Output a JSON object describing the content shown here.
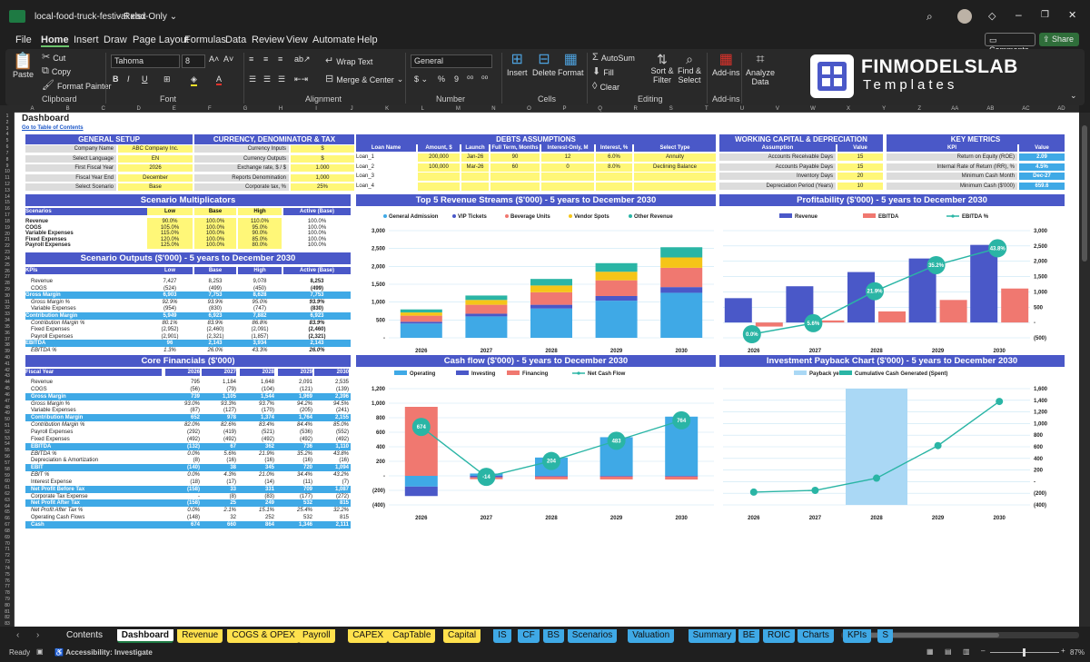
{
  "window": {
    "file": "local-food-truck-festival.xlsx",
    "mode": "Read-Only"
  },
  "menu": [
    "File",
    "Home",
    "Insert",
    "Draw",
    "Page Layout",
    "Formulas",
    "Data",
    "Review",
    "View",
    "Automate",
    "Help"
  ],
  "comments_label": "Comments",
  "share_label": "Share",
  "ribbon": {
    "paste": "Paste",
    "cut": "Cut",
    "copy": "Copy",
    "format_painter": "Format Painter",
    "clipboard": "Clipboard",
    "font_name": "Tahoma",
    "font_size": "8",
    "font": "Font",
    "wrap_text": "Wrap Text",
    "merge_center": "Merge & Center",
    "alignment": "Alignment",
    "number_format": "General",
    "number": "Number",
    "insert": "Insert",
    "delete": "Delete",
    "format": "Format",
    "cells": "Cells",
    "autosum": "AutoSum",
    "fill": "Fill",
    "clear": "Clear",
    "sort_filter": "Sort & Filter",
    "find_select": "Find & Select",
    "editing": "Editing",
    "addins": "Add-ins",
    "addins_grp": "Add-ins",
    "analyze_data": "Analyze Data"
  },
  "logo": {
    "name": "FINMODELSLAB",
    "sub": "Templates"
  },
  "columns": [
    "A",
    "B",
    "C",
    "D",
    "E",
    "F",
    "G",
    "H",
    "I",
    "J",
    "K",
    "L",
    "M",
    "N",
    "O",
    "P",
    "Q",
    "R",
    "S",
    "T",
    "U",
    "V",
    "W",
    "X",
    "Y",
    "Z",
    "AA",
    "AB",
    "AC",
    "AD"
  ],
  "dashboard": {
    "title": "Dashboard",
    "toc_link": "Go to Table of Contents"
  },
  "general_setup": {
    "title": "GENERAL SETUP",
    "rows": [
      [
        "Company Name",
        "ABC Company Inc."
      ],
      [
        "Select Language",
        "EN"
      ],
      [
        "First Fiscal Year",
        "2026"
      ],
      [
        "Fiscal Year End",
        "December"
      ],
      [
        "Select Scenario",
        "Base"
      ]
    ]
  },
  "currency": {
    "title": "CURRENCY, DENOMINATOR & TAX",
    "rows": [
      [
        "Currency Inputs",
        "$"
      ],
      [
        "Currency Outputs",
        "$"
      ],
      [
        "Exchange rate, $ / $",
        "1.000"
      ],
      [
        "Reports Denomination",
        "1,000"
      ],
      [
        "Corporate tax, %",
        "25%"
      ]
    ]
  },
  "debts": {
    "title": "DEBTS ASSUMPTIONS",
    "headers": [
      "Loan Name",
      "Amount, $",
      "Launch",
      "Full Term, Months",
      "Interest-Only, M",
      "Interest, %",
      "Select Type"
    ],
    "rows": [
      [
        "Loan_1",
        "200,000",
        "Jan-26",
        "90",
        "12",
        "6.0%",
        "Annuity"
      ],
      [
        "Loan_2",
        "100,000",
        "Mar-26",
        "60",
        "0",
        "8.0%",
        "Declining Balance"
      ],
      [
        "Loan_3",
        "",
        "",
        "",
        "",
        "",
        ""
      ],
      [
        "Loan_4",
        "",
        "",
        "",
        "",
        "",
        ""
      ]
    ]
  },
  "working_capital": {
    "title": "WORKING CAPITAL & DEPRECIATION",
    "headers": [
      "Assumption",
      "Value"
    ],
    "rows": [
      [
        "Accounts Receivable Days",
        "15"
      ],
      [
        "Accounts Payable Days",
        "15"
      ],
      [
        "Inventory Days",
        "20"
      ],
      [
        "Depreciation Period (Years)",
        "10"
      ]
    ]
  },
  "key_metrics": {
    "title": "KEY METRICS",
    "headers": [
      "KPI",
      "Value"
    ],
    "rows": [
      [
        "Return on Equity (ROE)",
        "2.09"
      ],
      [
        "Internal Rate of Return (IRR), %",
        "4.5%"
      ],
      [
        "Minimum Cash Month",
        "Dec-27"
      ],
      [
        "Minimum Cash ($'000)",
        "659.6"
      ]
    ]
  },
  "scenario_mult": {
    "title": "Scenario Multiplicators",
    "headers": [
      "Scenarios",
      "Low",
      "Base",
      "High",
      "Active (Base)"
    ],
    "rows": [
      [
        "Revenue",
        "90.0%",
        "100.0%",
        "110.0%",
        "100.0%"
      ],
      [
        "COGS",
        "105.0%",
        "100.0%",
        "95.0%",
        "100.0%"
      ],
      [
        "Variable Expenses",
        "115.0%",
        "100.0%",
        "90.0%",
        "100.0%"
      ],
      [
        "Fixed Expenses",
        "120.0%",
        "100.0%",
        "85.0%",
        "100.0%"
      ],
      [
        "Payroll Expenses",
        "125.0%",
        "100.0%",
        "80.0%",
        "100.0%"
      ]
    ]
  },
  "scenario_out": {
    "title": "Scenario Outputs ($'000) - 5 years to December 2030",
    "headers": [
      "KPIs",
      "Low",
      "Base",
      "High",
      "Active (Base)"
    ],
    "rows": [
      [
        "Revenue",
        "7,427",
        "8,253",
        "9,078",
        "8,253",
        "n"
      ],
      [
        "COGS",
        "(524)",
        "(499)",
        "(450)",
        "(499)",
        "n"
      ],
      [
        "Gross Margin",
        "6,903",
        "7,753",
        "8,628",
        "7,753",
        "b"
      ],
      [
        "Gross Margin %",
        "92.9%",
        "93.9%",
        "95.0%",
        "93.9%",
        "i"
      ],
      [
        "Variable Expenses",
        "(954)",
        "(830)",
        "(747)",
        "(830)",
        "n"
      ],
      [
        "Contribution Margin",
        "5,949",
        "6,923",
        "7,882",
        "6,923",
        "b"
      ],
      [
        "Contribution Margin %",
        "80.1%",
        "83.9%",
        "86.8%",
        "83.9%",
        "i"
      ],
      [
        "Fixed Expenses",
        "(2,952)",
        "(2,460)",
        "(2,091)",
        "(2,460)",
        "n"
      ],
      [
        "Payroll Expenses",
        "(2,901)",
        "(2,321)",
        "(1,857)",
        "(2,321)",
        "n"
      ],
      [
        "EBITDA",
        "96",
        "2,143",
        "3,934",
        "2,143",
        "b"
      ],
      [
        "EBITDA %",
        "1.3%",
        "26.0%",
        "43.3%",
        "26.0%",
        "i"
      ]
    ]
  },
  "core": {
    "title": "Core Financials ($'000)",
    "headers": [
      "Fiscal Year",
      "2026",
      "2027",
      "2028",
      "2029",
      "2030"
    ],
    "rows": [
      [
        "Revenue",
        "795",
        "1,184",
        "1,648",
        "2,091",
        "2,535",
        "n"
      ],
      [
        "COGS",
        "(56)",
        "(79)",
        "(104)",
        "(121)",
        "(139)",
        "n"
      ],
      [
        "Gross Margin",
        "739",
        "1,105",
        "1,544",
        "1,969",
        "2,396",
        "b"
      ],
      [
        "Gross Margin %",
        "93.0%",
        "93.3%",
        "93.7%",
        "94.2%",
        "94.5%",
        "i"
      ],
      [
        "Variable Expenses",
        "(87)",
        "(127)",
        "(170)",
        "(205)",
        "(241)",
        "n"
      ],
      [
        "Contribution Margin",
        "652",
        "978",
        "1,374",
        "1,764",
        "2,155",
        "b"
      ],
      [
        "Contribution Margin %",
        "82.0%",
        "82.6%",
        "83.4%",
        "84.4%",
        "85.0%",
        "i"
      ],
      [
        "Payroll Expenses",
        "(292)",
        "(419)",
        "(521)",
        "(536)",
        "(552)",
        "n"
      ],
      [
        "Fixed Expenses",
        "(492)",
        "(492)",
        "(492)",
        "(492)",
        "(492)",
        "n"
      ],
      [
        "EBITDA",
        "(132)",
        "67",
        "362",
        "736",
        "1,110",
        "b"
      ],
      [
        "EBITDA %",
        "0.0%",
        "5.6%",
        "21.9%",
        "35.2%",
        "43.8%",
        "i"
      ],
      [
        "Depreciation & Amortization",
        "(8)",
        "(16)",
        "(16)",
        "(16)",
        "(16)",
        "n"
      ],
      [
        "EBIT",
        "(140)",
        "38",
        "345",
        "720",
        "1,094",
        "b"
      ],
      [
        "EBIT %",
        "0.0%",
        "4.3%",
        "21.0%",
        "34.4%",
        "43.2%",
        "i"
      ],
      [
        "Interest Expense",
        "(18)",
        "(17)",
        "(14)",
        "(11)",
        "(7)",
        "n"
      ],
      [
        "Net Profit Before Tax",
        "(158)",
        "33",
        "331",
        "709",
        "1,087",
        "b"
      ],
      [
        "Corporate Tax Expense",
        "-",
        "(8)",
        "(83)",
        "(177)",
        "(272)",
        "n"
      ],
      [
        "Net Profit After Tax",
        "(158)",
        "25",
        "249",
        "532",
        "815",
        "b"
      ],
      [
        "Net Profit After Tax %",
        "0.0%",
        "2.1%",
        "15.1%",
        "25.4%",
        "32.2%",
        "i"
      ],
      [
        "Operating Cash Flows",
        "(148)",
        "32",
        "252",
        "532",
        "815",
        "n"
      ],
      [
        "Cash",
        "674",
        "660",
        "864",
        "1,346",
        "2,111",
        "b"
      ]
    ]
  },
  "chart_data": [
    {
      "type": "bar",
      "title": "Top 5 Revenue Streams ($'000) - 5 years to December 2030",
      "categories": [
        "2026",
        "2027",
        "2028",
        "2029",
        "2030"
      ],
      "ylim": [
        0,
        3000
      ],
      "yticks": [
        "3,000",
        "2,500",
        "2,000",
        "1,500",
        "1,000",
        "500",
        "-"
      ],
      "series": [
        {
          "name": "General Admission",
          "color": "#3fa9e6",
          "values": [
            400,
            600,
            820,
            1040,
            1260
          ]
        },
        {
          "name": "VIP Tickets",
          "color": "#4a58c8",
          "values": [
            50,
            75,
            105,
            130,
            160
          ]
        },
        {
          "name": "Beverage Units",
          "color": "#f07870",
          "values": [
            170,
            250,
            350,
            440,
            540
          ]
        },
        {
          "name": "Vendor Spots",
          "color": "#f5c518",
          "values": [
            90,
            135,
            190,
            240,
            290
          ]
        },
        {
          "name": "Other Revenue",
          "color": "#2ab5a5",
          "values": [
            85,
            124,
            183,
            240,
            286
          ]
        }
      ]
    },
    {
      "type": "bar+line",
      "title": "Profitability ($'000) - 5 years to December 2030",
      "categories": [
        "2026",
        "2027",
        "2028",
        "2029",
        "2030"
      ],
      "ylim": [
        -500,
        3000
      ],
      "yticks": [
        "3,000",
        "2,500",
        "2,000",
        "1,500",
        "1,000",
        "500",
        "-",
        "(500)"
      ],
      "series": [
        {
          "name": "Revenue",
          "color": "#4a58c8",
          "values": [
            795,
            1184,
            1648,
            2091,
            2535
          ]
        },
        {
          "name": "EBITDA",
          "color": "#f07870",
          "values": [
            -132,
            67,
            362,
            736,
            1110
          ]
        },
        {
          "name": "EBITDA %",
          "color": "#2ab5a5",
          "values": [
            0.0,
            5.6,
            21.9,
            35.2,
            43.8
          ],
          "labels": [
            "0.0%",
            "5.6%",
            "21.9%",
            "35.2%",
            "43.8%"
          ]
        }
      ]
    },
    {
      "type": "bar+line",
      "title": "Cash flow ($'000) - 5 years to December 2030",
      "categories": [
        "2026",
        "2027",
        "2028",
        "2029",
        "2030"
      ],
      "ylim": [
        -400,
        1200
      ],
      "yticks": [
        "1,200",
        "1,000",
        "800",
        "600",
        "400",
        "200",
        "-",
        "(200)",
        "(400)"
      ],
      "series": [
        {
          "name": "Operating",
          "color": "#3fa9e6",
          "values": [
            -148,
            32,
            252,
            532,
            815
          ]
        },
        {
          "name": "Investing",
          "color": "#4a58c8",
          "values": [
            -130,
            -20,
            -10,
            -10,
            -10
          ]
        },
        {
          "name": "Financing",
          "color": "#f07870",
          "values": [
            950,
            -26,
            -38,
            -39,
            -41
          ]
        },
        {
          "name": "Net Cash Flow",
          "color": "#2ab5a5",
          "values": [
            674,
            -14,
            204,
            483,
            764
          ],
          "labels": [
            "674",
            "-14",
            "204",
            "483",
            "764"
          ]
        }
      ]
    },
    {
      "type": "bar+line",
      "title": "Investment Payback Chart ($'000) - 5 years to December 2030",
      "categories": [
        "2026",
        "2027",
        "2028",
        "2029",
        "2030"
      ],
      "ylim": [
        -400,
        1600
      ],
      "yticks": [
        "1,600",
        "1,400",
        "1,200",
        "1,000",
        "800",
        "600",
        "400",
        "200",
        "-",
        "(200)",
        "(400)"
      ],
      "series": [
        {
          "name": "Payback year",
          "color": "#aad8f5",
          "values": [
            0,
            0,
            1,
            0,
            0
          ]
        },
        {
          "name": "Cumulative Cash Generated (Spent)",
          "color": "#2ab5a5",
          "values": [
            -180,
            -150,
            60,
            620,
            1380
          ]
        }
      ]
    }
  ],
  "sheet_tabs": [
    {
      "label": "Contents",
      "color": "#1f1f1f",
      "text": "#e8e8e8"
    },
    {
      "label": "Dashboard",
      "color": "#ffffff",
      "text": "#111"
    },
    {
      "label": "Revenue",
      "color": "#ffe14d",
      "text": "#111"
    },
    {
      "label": "COGS & OPEX",
      "color": "#ffe14d",
      "text": "#111"
    },
    {
      "label": "Payroll",
      "color": "#ffe14d",
      "text": "#111"
    },
    {
      "label": "CAPEX",
      "color": "#ffe14d",
      "text": "#111"
    },
    {
      "label": "CapTable",
      "color": "#ffe14d",
      "text": "#111"
    },
    {
      "label": "Capital",
      "color": "#ffe14d",
      "text": "#111"
    },
    {
      "label": "IS",
      "color": "#3fa9e6",
      "text": "#111"
    },
    {
      "label": "CF",
      "color": "#3fa9e6",
      "text": "#111"
    },
    {
      "label": "BS",
      "color": "#3fa9e6",
      "text": "#111"
    },
    {
      "label": "Scenarios",
      "color": "#3fa9e6",
      "text": "#111"
    },
    {
      "label": "Valuation",
      "color": "#3fa9e6",
      "text": "#111"
    },
    {
      "label": "Summary",
      "color": "#3fa9e6",
      "text": "#111"
    },
    {
      "label": "BE",
      "color": "#3fa9e6",
      "text": "#111"
    },
    {
      "label": "ROIC",
      "color": "#3fa9e6",
      "text": "#111"
    },
    {
      "label": "Charts",
      "color": "#3fa9e6",
      "text": "#111"
    },
    {
      "label": "KPIs",
      "color": "#3fa9e6",
      "text": "#111"
    },
    {
      "label": "S",
      "color": "#3fa9e6",
      "text": "#111"
    }
  ],
  "status": {
    "ready": "Ready",
    "accessibility": "Accessibility: Investigate",
    "zoom": "87%"
  },
  "colors": {
    "accent": "#4a58c8",
    "blue": "#3fa9e6",
    "yellow": "#fff778",
    "teal": "#2ab5a5",
    "salmon": "#f07870"
  }
}
